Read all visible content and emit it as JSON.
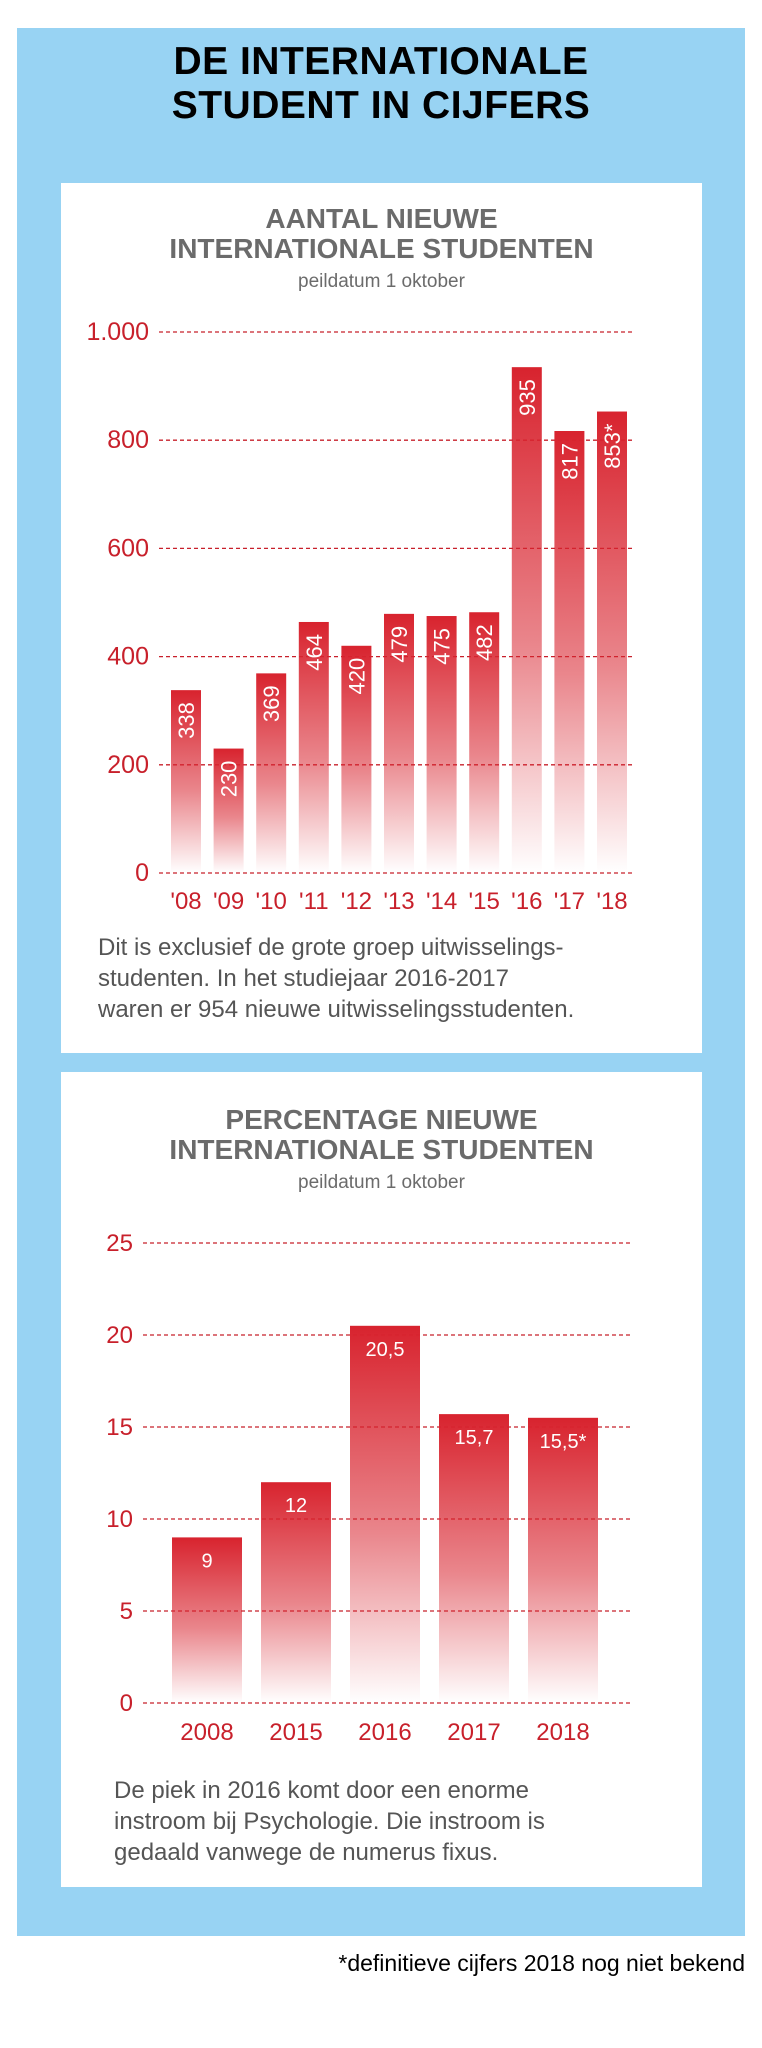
{
  "title_lines": [
    "DE INTERNATIONALE",
    "STUDENT IN CIJFERS"
  ],
  "footnote": "*definitieve cijfers 2018 nog niet bekend",
  "colors": {
    "frame": "#98d3f3",
    "bar_top": "#d8232e",
    "accent_text": "#c8202b",
    "grid": "#c8202b"
  },
  "panel1": {
    "title_lines": [
      "AANTAL NIEUWE",
      "INTERNATIONALE STUDENTEN"
    ],
    "subtitle": "peildatum 1 oktober",
    "note_lines": [
      "Dit is exclusief de grote groep uitwisselings-",
      "studenten. In het studiejaar 2016-2017",
      "waren er 954 nieuwe uitwisselingsstudenten."
    ]
  },
  "panel2": {
    "title_lines": [
      "PERCENTAGE NIEUWE",
      "INTERNATIONALE STUDENTEN"
    ],
    "subtitle": "peildatum 1 oktober",
    "note_lines": [
      "De piek in 2016 komt door een enorme",
      "instroom bij Psychologie. Die instroom is",
      "gedaald vanwege de numerus fixus."
    ]
  },
  "chart_data": [
    {
      "type": "bar",
      "title": "AANTAL NIEUWE INTERNATIONALE STUDENTEN",
      "subtitle": "peildatum 1 oktober",
      "categories": [
        "'08",
        "'09",
        "'10",
        "'11",
        "'12",
        "'13",
        "'14",
        "'15",
        "'16",
        "'17",
        "'18"
      ],
      "values": [
        338,
        230,
        369,
        464,
        420,
        479,
        475,
        482,
        935,
        817,
        853
      ],
      "value_labels": [
        "338",
        "230",
        "369",
        "464",
        "420",
        "479",
        "475",
        "482",
        "935",
        "817",
        "853*"
      ],
      "yticks": [
        0,
        200,
        400,
        600,
        800,
        1000
      ],
      "ytick_labels": [
        "0",
        "200",
        "400",
        "600",
        "800",
        "1.000"
      ],
      "ylim": [
        0,
        1000
      ],
      "grid": true,
      "value_label_orientation": "vertical"
    },
    {
      "type": "bar",
      "title": "PERCENTAGE NIEUWE INTERNATIONALE STUDENTEN",
      "subtitle": "peildatum 1 oktober",
      "categories": [
        "2008",
        "2015",
        "2016",
        "2017",
        "2018"
      ],
      "values": [
        9,
        12,
        20.5,
        15.7,
        15.5
      ],
      "value_labels": [
        "9",
        "12",
        "20,5",
        "15,7",
        "15,5*"
      ],
      "yticks": [
        0,
        5,
        10,
        15,
        20,
        25
      ],
      "ytick_labels": [
        "0",
        "5",
        "10",
        "15",
        "20",
        "25"
      ],
      "ylim": [
        0,
        25
      ],
      "grid": true,
      "value_label_orientation": "horizontal"
    }
  ]
}
